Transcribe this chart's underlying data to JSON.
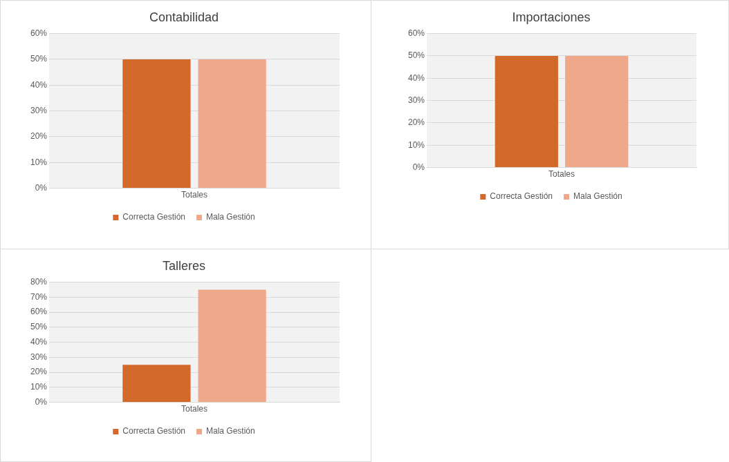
{
  "chart_data": [
    {
      "type": "bar",
      "title": "Contabilidad",
      "categories": [
        "Totales"
      ],
      "series": [
        {
          "name": "Correcta Gestión",
          "color": "#d2692a",
          "values": [
            50
          ]
        },
        {
          "name": "Mala Gestión",
          "color": "#f0a88a",
          "values": [
            50
          ]
        }
      ],
      "ylim": [
        0,
        60
      ],
      "yticks": [
        {
          "value": 0,
          "label": "0%"
        },
        {
          "value": 10,
          "label": "10%"
        },
        {
          "value": 20,
          "label": "20%"
        },
        {
          "value": 30,
          "label": "30%"
        },
        {
          "value": 40,
          "label": "40%"
        },
        {
          "value": 50,
          "label": "50%"
        },
        {
          "value": 60,
          "label": "60%"
        }
      ],
      "grid": "y",
      "legend": "bottom"
    },
    {
      "type": "bar",
      "title": "Importaciones",
      "categories": [
        "Totales"
      ],
      "series": [
        {
          "name": "Correcta Gestión",
          "color": "#d2692a",
          "values": [
            50
          ]
        },
        {
          "name": "Mala Gestión",
          "color": "#f0a88a",
          "values": [
            50
          ]
        }
      ],
      "ylim": [
        0,
        60
      ],
      "yticks": [
        {
          "value": 0,
          "label": "0%"
        },
        {
          "value": 10,
          "label": "10%"
        },
        {
          "value": 20,
          "label": "20%"
        },
        {
          "value": 30,
          "label": "30%"
        },
        {
          "value": 40,
          "label": "40%"
        },
        {
          "value": 50,
          "label": "50%"
        },
        {
          "value": 60,
          "label": "60%"
        }
      ],
      "grid": "y",
      "legend": "bottom"
    },
    {
      "type": "bar",
      "title": "Talleres",
      "categories": [
        "Totales"
      ],
      "series": [
        {
          "name": "Correcta Gestión",
          "color": "#d2692a",
          "values": [
            25
          ]
        },
        {
          "name": "Mala Gestión",
          "color": "#f0a88a",
          "values": [
            75
          ]
        }
      ],
      "ylim": [
        0,
        80
      ],
      "yticks": [
        {
          "value": 0,
          "label": "0%"
        },
        {
          "value": 10,
          "label": "10%"
        },
        {
          "value": 20,
          "label": "20%"
        },
        {
          "value": 30,
          "label": "30%"
        },
        {
          "value": 40,
          "label": "40%"
        },
        {
          "value": 50,
          "label": "50%"
        },
        {
          "value": 60,
          "label": "60%"
        },
        {
          "value": 70,
          "label": "70%"
        },
        {
          "value": 80,
          "label": "80%"
        }
      ],
      "grid": "y",
      "legend": "bottom"
    }
  ]
}
